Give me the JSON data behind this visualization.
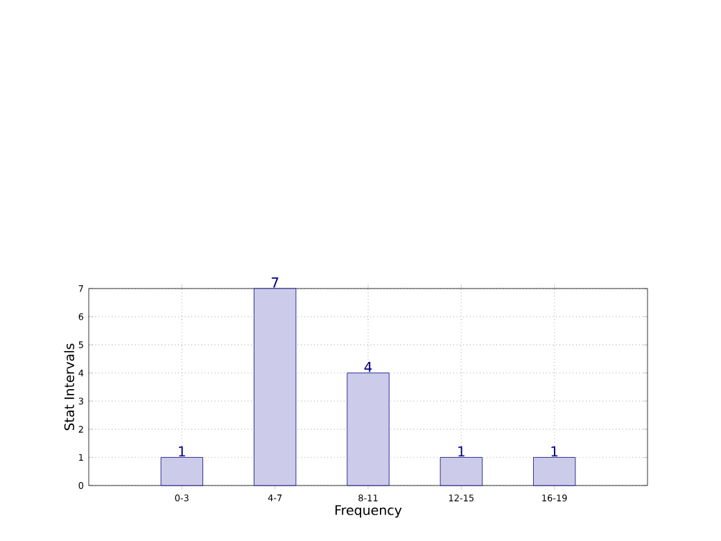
{
  "chart_data": {
    "type": "bar",
    "xlabel": "Frequency",
    "ylabel": "Stat Intervals",
    "categories": [
      "0-3",
      "4-7",
      "8-11",
      "12-15",
      "16-19"
    ],
    "values": [
      1,
      7,
      4,
      1,
      1
    ],
    "color": "#ccccea",
    "ylim": [
      0,
      7
    ],
    "yticks": [
      0,
      1,
      2,
      3,
      4,
      5,
      6,
      7
    ],
    "grid": true,
    "data_labels": true
  }
}
